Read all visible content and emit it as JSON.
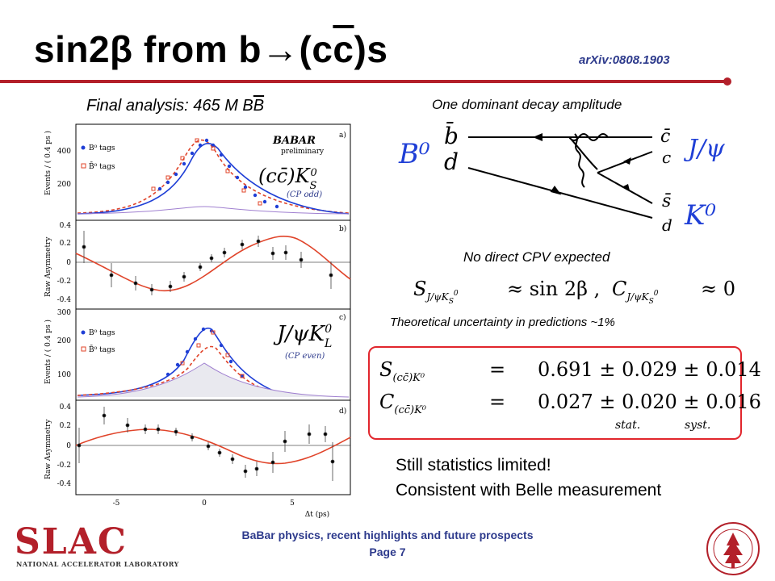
{
  "slide": {
    "title_prefix": "sin2β from b→(c",
    "title_overline": "c",
    "title_suffix": ")s",
    "arxiv": "arXiv:0808.1903",
    "final_analysis_prefix": "Final analysis: 465 M B",
    "final_analysis_bar": "B",
    "dominant_amplitude": "One dominant decay amplitude",
    "no_direct_cpv": "No direct CPV expected",
    "theory_uncertainty": "Theoretical uncertainty in predictions ~1%",
    "stat_label": "stat.",
    "syst_label": "syst.",
    "still_limited": "Still statistics limited!",
    "consistent_belle": "Consistent with Belle measurement",
    "footer_title": "BaBar physics, recent highlights and future prospects",
    "footer_page": "Page 7"
  },
  "colors": {
    "accent_red": "#b3202a",
    "navy": "#2d3a8c",
    "box_red": "#e1262d",
    "blue_series": "#1f3fd6",
    "red_series": "#e0442a"
  },
  "results": {
    "S": {
      "label": "S",
      "subscript": "(cc̄)K⁰",
      "value": "0.691",
      "stat": "0.029",
      "syst": "0.014"
    },
    "C": {
      "label": "C",
      "subscript": "(cc̄)K⁰",
      "value": "0.027",
      "stat": "0.020",
      "syst": "0.016"
    }
  },
  "predictions": {
    "S_expr": "≈ sin 2β ,",
    "C_expr": "≈ 0"
  },
  "diagram": {
    "b0": "B⁰",
    "bbar": "b̄",
    "d_left": "d",
    "cbar": "c̄",
    "c": "c",
    "jpsi": "J/ψ",
    "sbar": "s̄",
    "d_right": "d",
    "k0": "K⁰"
  },
  "plot": {
    "babar": "BABAR",
    "preliminary": "preliminary",
    "panel_labels": [
      "a)",
      "b)",
      "c)",
      "d)"
    ],
    "b0_tags": "B⁰ tags",
    "b0bar_tags": "B̄⁰ tags",
    "ylabel_events": "Events / ( 0.4 ps )",
    "ylabel_asym": "Raw Asymmetry",
    "xlabel": "Δt (ps)",
    "ccks": "(cc̄)K",
    "ccks_sub": "S",
    "ccks_sup": "0",
    "cp_odd": "(CP odd)",
    "jpsikl": "J/ψK",
    "jpsikl_sub": "L",
    "jpsikl_sup": "0",
    "cp_even": "(CP even)",
    "xticks": [
      "-5",
      "0",
      "5"
    ],
    "panel_a_yticks": [
      "200",
      "400"
    ],
    "panel_b_yticks": [
      "0.4",
      "0.2",
      "0",
      "-0.2",
      "-0.4"
    ],
    "panel_c_yticks": [
      "100",
      "200",
      "300"
    ],
    "panel_d_yticks": [
      "0.4",
      "0.2",
      "0",
      "-0.2",
      "-0.4"
    ]
  },
  "logos": {
    "slac": "SLAC",
    "slac_sub": "NATIONAL ACCELERATOR LABORATORY",
    "seal": "Stanford University seal"
  }
}
